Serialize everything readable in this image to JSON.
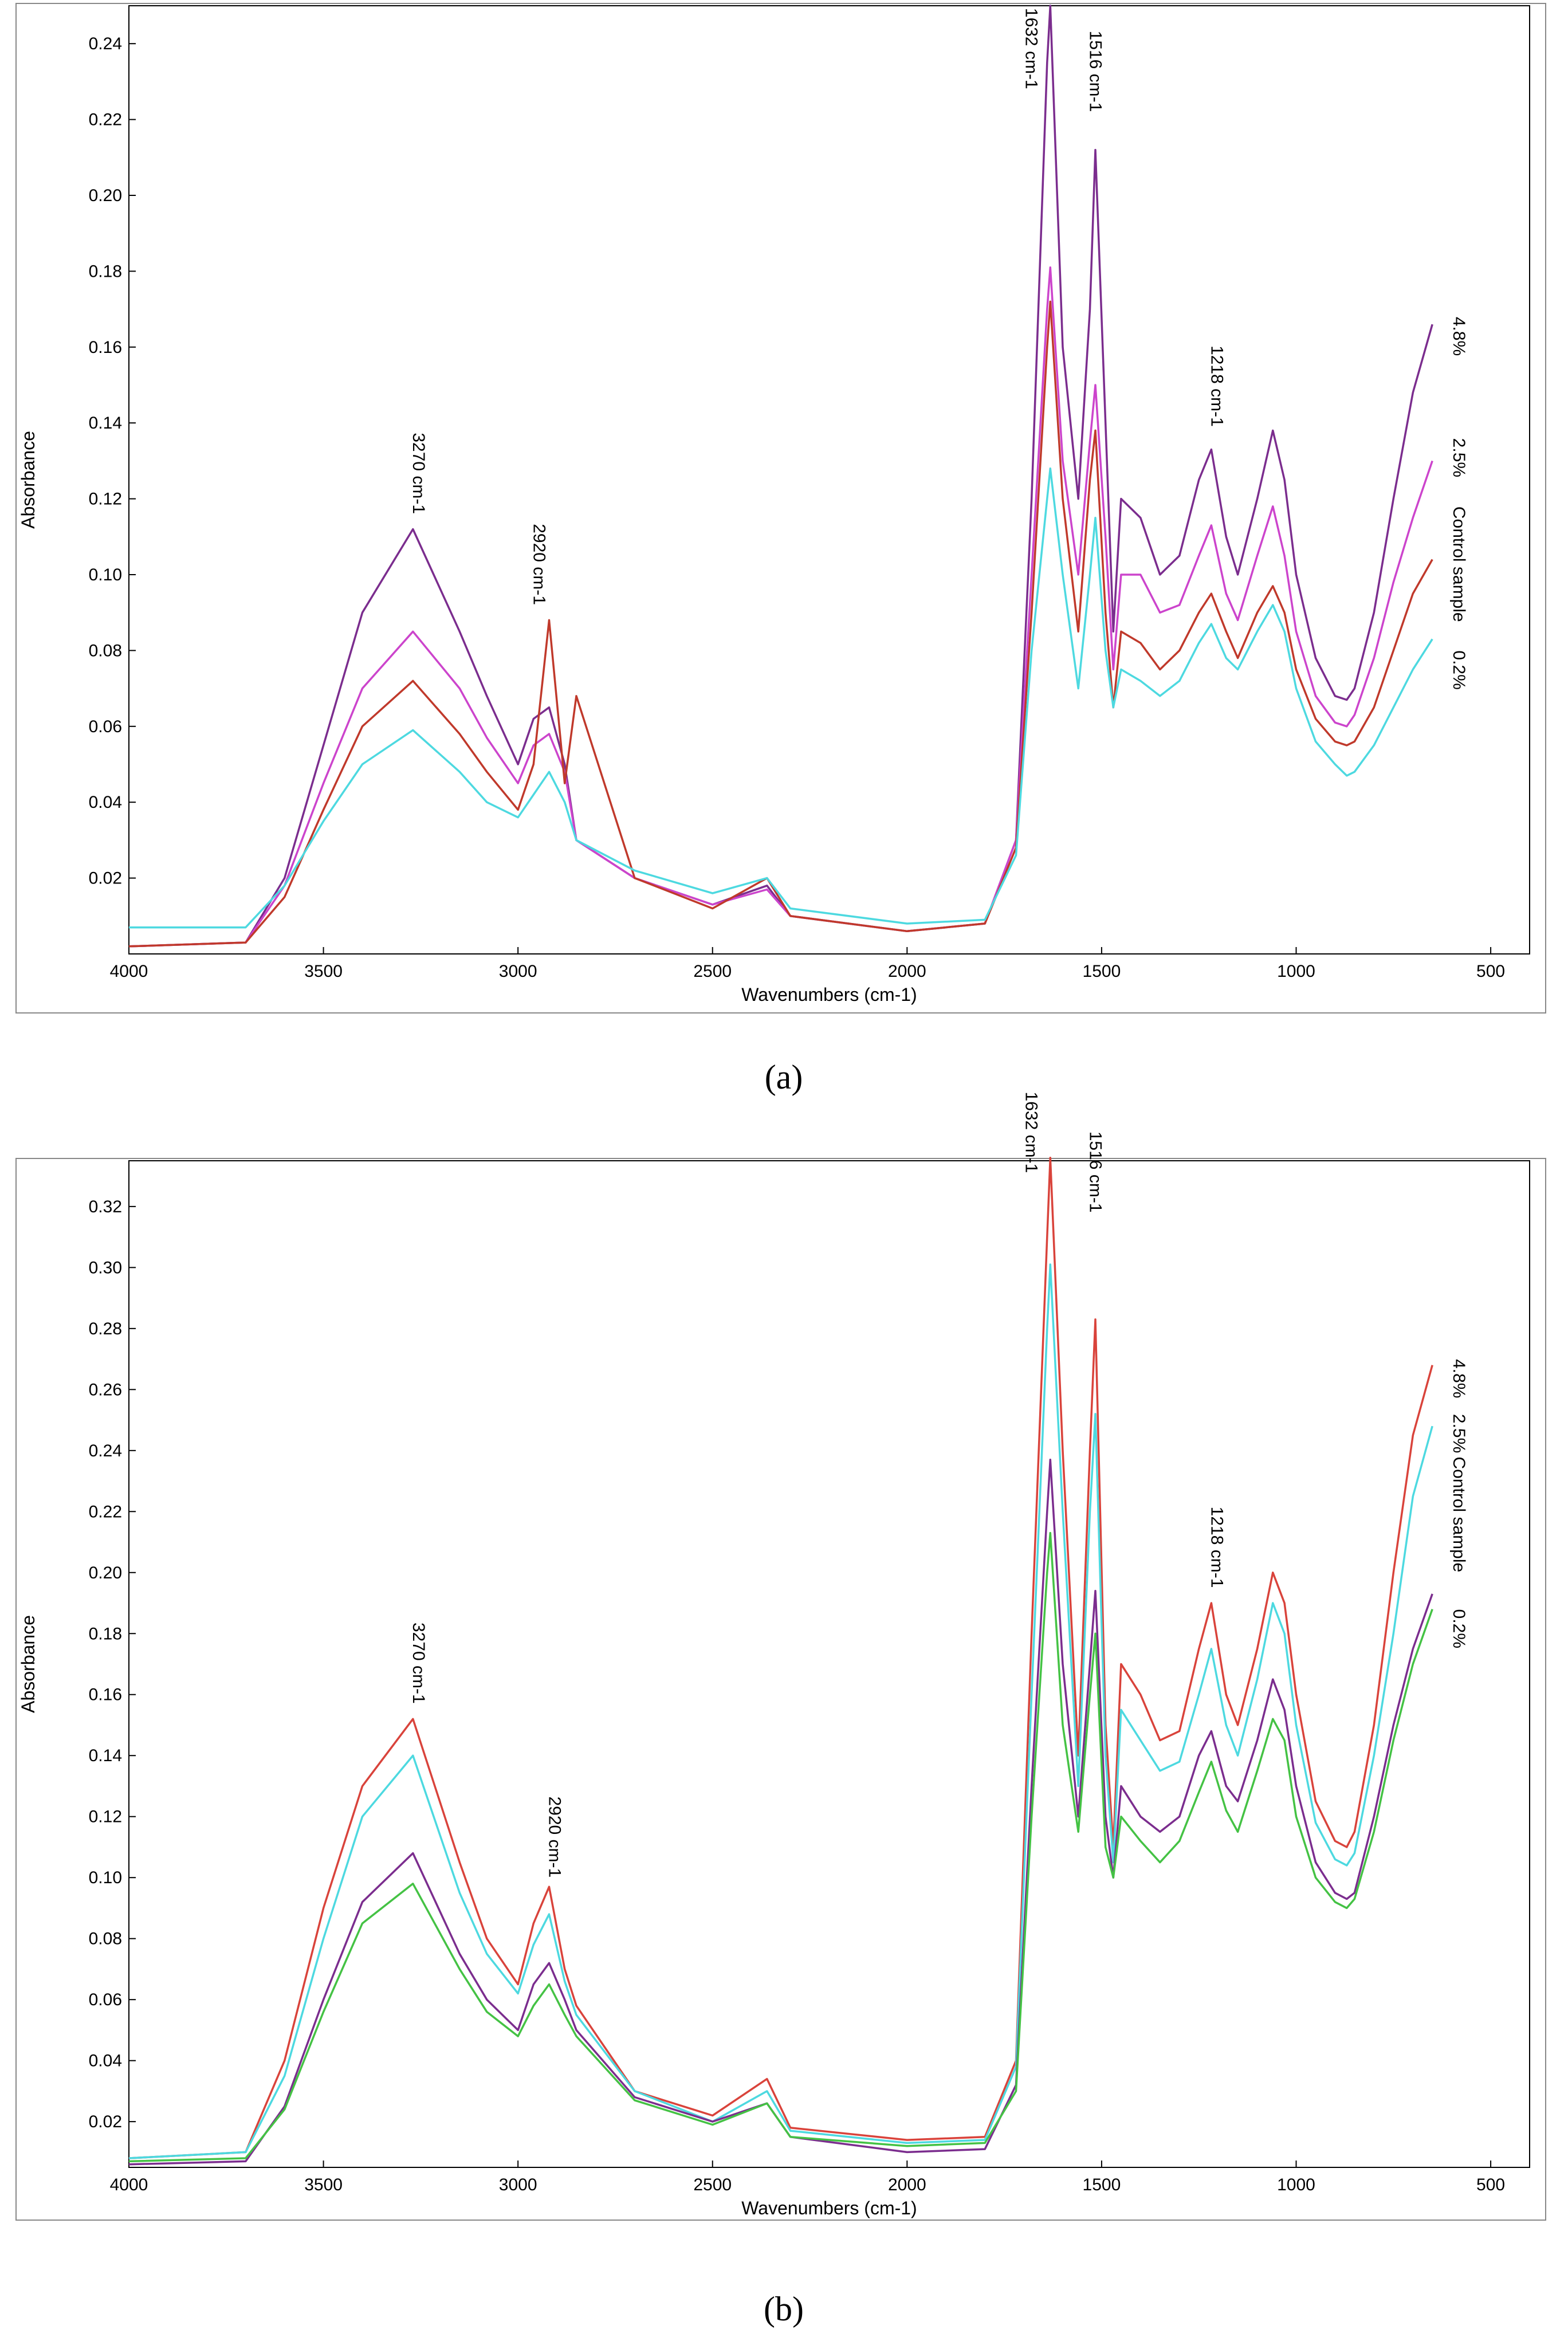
{
  "figure": {
    "captions": [
      "(a)",
      "(b)"
    ]
  },
  "chart_data": [
    {
      "type": "line",
      "panel": "a",
      "title": "",
      "xlabel": "Wavenumbers (cm-1)",
      "ylabel": "Absorbance",
      "xlim": [
        4000,
        400
      ],
      "ylim": [
        0,
        0.25
      ],
      "xticks": [
        4000,
        3500,
        3000,
        2500,
        2000,
        1500,
        1000,
        500
      ],
      "yticks": [
        0.02,
        0.04,
        0.06,
        0.08,
        0.1,
        0.12,
        0.14,
        0.16,
        0.18,
        0.2,
        0.22,
        0.24
      ],
      "ytick_labels": [
        "0.02",
        "0.04",
        "0.06",
        "0.08",
        "0.10",
        "0.12",
        "0.14",
        "0.16",
        "0.18",
        "0.20",
        "0.22",
        "0.24"
      ],
      "x": [
        4000,
        3700,
        3600,
        3500,
        3400,
        3270,
        3150,
        3080,
        3000,
        2960,
        2920,
        2880,
        2850,
        2700,
        2500,
        2360,
        2300,
        2000,
        1800,
        1720,
        1680,
        1640,
        1632,
        1600,
        1560,
        1530,
        1516,
        1490,
        1470,
        1450,
        1400,
        1350,
        1300,
        1250,
        1218,
        1180,
        1150,
        1100,
        1060,
        1030,
        1000,
        950,
        900,
        870,
        850,
        800,
        750,
        700,
        650
      ],
      "series": [
        {
          "name": "4.8%",
          "color": "#7b2d8e",
          "values": [
            0.002,
            0.003,
            0.02,
            0.055,
            0.09,
            0.112,
            0.085,
            0.068,
            0.05,
            0.062,
            0.065,
            0.05,
            0.03,
            0.02,
            0.013,
            0.018,
            0.01,
            0.006,
            0.008,
            0.03,
            0.12,
            0.235,
            0.25,
            0.16,
            0.12,
            0.17,
            0.212,
            0.14,
            0.085,
            0.12,
            0.115,
            0.1,
            0.105,
            0.125,
            0.133,
            0.11,
            0.1,
            0.12,
            0.138,
            0.125,
            0.1,
            0.078,
            0.068,
            0.067,
            0.07,
            0.09,
            0.12,
            0.148,
            0.166
          ]
        },
        {
          "name": "2.5%",
          "color": "#cc44cc",
          "values": [
            0.002,
            0.003,
            0.018,
            0.045,
            0.07,
            0.085,
            0.07,
            0.057,
            0.045,
            0.055,
            0.058,
            0.048,
            0.03,
            0.02,
            0.013,
            0.017,
            0.01,
            0.006,
            0.008,
            0.03,
            0.1,
            0.17,
            0.181,
            0.13,
            0.1,
            0.135,
            0.15,
            0.11,
            0.075,
            0.1,
            0.1,
            0.09,
            0.092,
            0.105,
            0.113,
            0.095,
            0.088,
            0.105,
            0.118,
            0.105,
            0.085,
            0.068,
            0.061,
            0.06,
            0.063,
            0.078,
            0.098,
            0.115,
            0.13
          ]
        },
        {
          "name": "Control sample",
          "color": "#c0392b",
          "values": [
            0.002,
            0.003,
            0.015,
            0.038,
            0.06,
            0.072,
            0.058,
            0.048,
            0.038,
            0.05,
            0.088,
            0.045,
            0.068,
            0.02,
            0.012,
            0.02,
            0.01,
            0.006,
            0.008,
            0.028,
            0.09,
            0.16,
            0.172,
            0.12,
            0.085,
            0.125,
            0.138,
            0.09,
            0.065,
            0.085,
            0.082,
            0.075,
            0.08,
            0.09,
            0.095,
            0.085,
            0.078,
            0.09,
            0.097,
            0.09,
            0.075,
            0.062,
            0.056,
            0.055,
            0.056,
            0.065,
            0.08,
            0.095,
            0.104
          ]
        },
        {
          "name": "0.2%",
          "color": "#4dd9e0",
          "values": [
            0.007,
            0.007,
            0.018,
            0.035,
            0.05,
            0.059,
            0.048,
            0.04,
            0.036,
            0.042,
            0.048,
            0.04,
            0.03,
            0.022,
            0.016,
            0.02,
            0.012,
            0.008,
            0.009,
            0.026,
            0.08,
            0.12,
            0.128,
            0.1,
            0.07,
            0.1,
            0.115,
            0.08,
            0.065,
            0.075,
            0.072,
            0.068,
            0.072,
            0.082,
            0.087,
            0.078,
            0.075,
            0.085,
            0.092,
            0.085,
            0.07,
            0.056,
            0.05,
            0.047,
            0.048,
            0.055,
            0.065,
            0.075,
            0.083
          ]
        }
      ],
      "annotations": [
        {
          "text": "3270 cm-1",
          "x": 3270,
          "y": 0.116
        },
        {
          "text": "2920 cm-1",
          "x": 2960,
          "y": 0.092
        },
        {
          "text": "1632 cm-1",
          "x": 1695,
          "y": 0.228
        },
        {
          "text": "1516 cm-1",
          "x": 1530,
          "y": 0.222
        },
        {
          "text": "1218 cm-1",
          "x": 1218,
          "y": 0.139
        }
      ],
      "series_labels": [
        {
          "text": "4.8%",
          "x": 640,
          "y": 0.168
        },
        {
          "text": "2.5%",
          "x": 640,
          "y": 0.136
        },
        {
          "text": "Control sample",
          "x": 640,
          "y": 0.118
        },
        {
          "text": "0.2%",
          "x": 640,
          "y": 0.08
        }
      ]
    },
    {
      "type": "line",
      "panel": "b",
      "title": "",
      "xlabel": "Wavenumbers (cm-1)",
      "ylabel": "Absorbance",
      "xlim": [
        4000,
        400
      ],
      "ylim": [
        0.005,
        0.335
      ],
      "xticks": [
        4000,
        3500,
        3000,
        2500,
        2000,
        1500,
        1000,
        500
      ],
      "yticks": [
        0.02,
        0.04,
        0.06,
        0.08,
        0.1,
        0.12,
        0.14,
        0.16,
        0.18,
        0.2,
        0.22,
        0.24,
        0.26,
        0.28,
        0.3,
        0.32
      ],
      "ytick_labels": [
        "0.02",
        "0.04",
        "0.06",
        "0.08",
        "0.10",
        "0.12",
        "0.14",
        "0.16",
        "0.18",
        "0.20",
        "0.22",
        "0.24",
        "0.26",
        "0.28",
        "0.30",
        "0.32"
      ],
      "x": [
        4000,
        3700,
        3600,
        3500,
        3400,
        3270,
        3150,
        3080,
        3000,
        2960,
        2920,
        2880,
        2850,
        2700,
        2500,
        2360,
        2300,
        2000,
        1800,
        1720,
        1680,
        1640,
        1632,
        1600,
        1560,
        1530,
        1516,
        1490,
        1470,
        1450,
        1400,
        1350,
        1300,
        1250,
        1218,
        1180,
        1150,
        1100,
        1060,
        1030,
        1000,
        950,
        900,
        870,
        850,
        800,
        750,
        700,
        650
      ],
      "series": [
        {
          "name": "4.8%",
          "color": "#d9433b",
          "values": [
            0.008,
            0.01,
            0.04,
            0.09,
            0.13,
            0.152,
            0.105,
            0.08,
            0.065,
            0.085,
            0.097,
            0.07,
            0.058,
            0.03,
            0.022,
            0.034,
            0.018,
            0.014,
            0.015,
            0.04,
            0.18,
            0.31,
            0.336,
            0.24,
            0.14,
            0.24,
            0.283,
            0.15,
            0.11,
            0.17,
            0.16,
            0.145,
            0.148,
            0.175,
            0.19,
            0.16,
            0.15,
            0.175,
            0.2,
            0.19,
            0.16,
            0.125,
            0.112,
            0.11,
            0.115,
            0.15,
            0.2,
            0.245,
            0.268
          ]
        },
        {
          "name": "2.5%",
          "color": "#4dd9e0",
          "values": [
            0.008,
            0.01,
            0.035,
            0.08,
            0.12,
            0.14,
            0.095,
            0.075,
            0.062,
            0.078,
            0.088,
            0.066,
            0.055,
            0.03,
            0.02,
            0.03,
            0.017,
            0.013,
            0.014,
            0.038,
            0.16,
            0.28,
            0.301,
            0.22,
            0.13,
            0.22,
            0.252,
            0.14,
            0.105,
            0.155,
            0.145,
            0.135,
            0.138,
            0.16,
            0.175,
            0.15,
            0.14,
            0.165,
            0.19,
            0.18,
            0.15,
            0.118,
            0.106,
            0.104,
            0.108,
            0.14,
            0.18,
            0.225,
            0.248
          ]
        },
        {
          "name": "Control sample",
          "color": "#7b2d8e",
          "values": [
            0.006,
            0.007,
            0.025,
            0.06,
            0.092,
            0.108,
            0.075,
            0.06,
            0.05,
            0.065,
            0.072,
            0.06,
            0.05,
            0.028,
            0.02,
            0.026,
            0.015,
            0.01,
            0.011,
            0.032,
            0.13,
            0.22,
            0.237,
            0.17,
            0.12,
            0.17,
            0.194,
            0.12,
            0.1,
            0.13,
            0.12,
            0.115,
            0.12,
            0.14,
            0.148,
            0.13,
            0.125,
            0.145,
            0.165,
            0.155,
            0.13,
            0.105,
            0.095,
            0.093,
            0.095,
            0.12,
            0.15,
            0.175,
            0.193
          ]
        },
        {
          "name": "0.2%",
          "color": "#44c244",
          "values": [
            0.007,
            0.008,
            0.024,
            0.056,
            0.085,
            0.098,
            0.07,
            0.056,
            0.048,
            0.058,
            0.065,
            0.055,
            0.048,
            0.027,
            0.019,
            0.026,
            0.015,
            0.012,
            0.013,
            0.03,
            0.12,
            0.2,
            0.213,
            0.15,
            0.115,
            0.16,
            0.18,
            0.11,
            0.1,
            0.12,
            0.112,
            0.105,
            0.112,
            0.128,
            0.138,
            0.122,
            0.115,
            0.135,
            0.152,
            0.145,
            0.12,
            0.1,
            0.092,
            0.09,
            0.093,
            0.115,
            0.145,
            0.17,
            0.188
          ]
        }
      ],
      "annotations": [
        {
          "text": "3270 cm-1",
          "x": 3270,
          "y": 0.157
        },
        {
          "text": "2920 cm-1",
          "x": 2920,
          "y": 0.1
        },
        {
          "text": "1632 cm-1",
          "x": 1695,
          "y": 0.331
        },
        {
          "text": "1516 cm-1",
          "x": 1530,
          "y": 0.318
        },
        {
          "text": "1218 cm-1",
          "x": 1218,
          "y": 0.195
        }
      ],
      "series_labels": [
        {
          "text": "4.8%",
          "x": 640,
          "y": 0.27
        },
        {
          "text": "2.5%",
          "x": 640,
          "y": 0.252
        },
        {
          "text": "Control sample",
          "x": 640,
          "y": 0.238
        },
        {
          "text": "0.2%",
          "x": 640,
          "y": 0.188
        }
      ]
    }
  ]
}
